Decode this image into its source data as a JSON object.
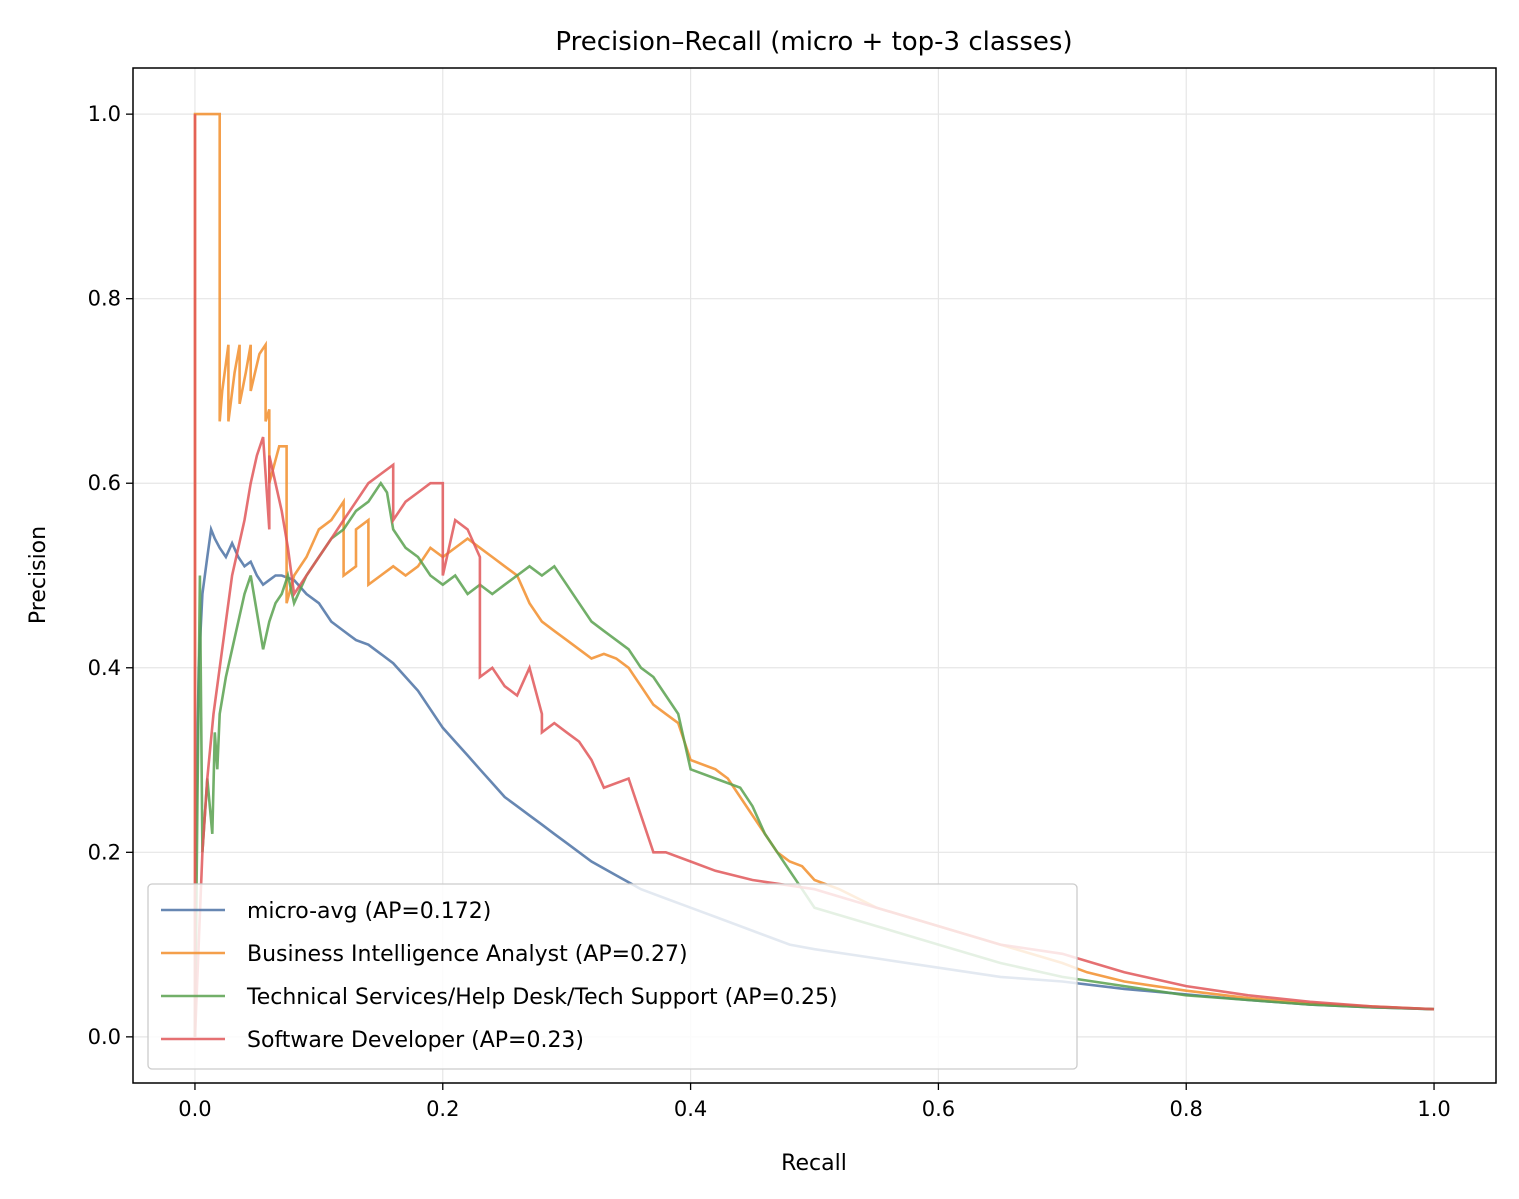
{
  "chart_data": {
    "type": "line",
    "title": "Precision–Recall (micro + top-3 classes)",
    "xlabel": "Recall",
    "ylabel": "Precision",
    "xlim": [
      -0.05,
      1.05
    ],
    "ylim": [
      -0.05,
      1.05
    ],
    "xticks": [
      0.0,
      0.2,
      0.4,
      0.6,
      0.8,
      1.0
    ],
    "yticks": [
      0.0,
      0.2,
      0.4,
      0.6,
      0.8,
      1.0
    ],
    "xtick_labels": [
      "0.0",
      "0.2",
      "0.4",
      "0.6",
      "0.8",
      "1.0"
    ],
    "ytick_labels": [
      "0.0",
      "0.2",
      "0.4",
      "0.6",
      "0.8",
      "1.0"
    ],
    "grid": true,
    "legend_position": "lower-left",
    "series": [
      {
        "name": "micro-avg (AP=0.172)",
        "color": "#4c72a4",
        "x": [
          0.0,
          0.0,
          0.003,
          0.006,
          0.01,
          0.013,
          0.016,
          0.02,
          0.025,
          0.03,
          0.035,
          0.04,
          0.045,
          0.05,
          0.055,
          0.06,
          0.065,
          0.07,
          0.08,
          0.09,
          0.1,
          0.11,
          0.12,
          0.13,
          0.14,
          0.15,
          0.16,
          0.17,
          0.18,
          0.19,
          0.2,
          0.21,
          0.22,
          0.23,
          0.24,
          0.25,
          0.26,
          0.27,
          0.28,
          0.29,
          0.3,
          0.32,
          0.34,
          0.36,
          0.38,
          0.4,
          0.42,
          0.44,
          0.46,
          0.48,
          0.5,
          0.55,
          0.6,
          0.65,
          0.7,
          0.75,
          0.8,
          0.85,
          0.9,
          0.95,
          1.0
        ],
        "y": [
          0.0,
          0.15,
          0.4,
          0.48,
          0.52,
          0.55,
          0.54,
          0.53,
          0.52,
          0.535,
          0.52,
          0.51,
          0.515,
          0.5,
          0.49,
          0.495,
          0.5,
          0.5,
          0.495,
          0.48,
          0.47,
          0.45,
          0.44,
          0.43,
          0.425,
          0.415,
          0.405,
          0.39,
          0.375,
          0.355,
          0.335,
          0.32,
          0.305,
          0.29,
          0.275,
          0.26,
          0.25,
          0.24,
          0.23,
          0.22,
          0.21,
          0.19,
          0.175,
          0.16,
          0.15,
          0.14,
          0.13,
          0.12,
          0.11,
          0.1,
          0.095,
          0.085,
          0.075,
          0.065,
          0.06,
          0.052,
          0.046,
          0.04,
          0.035,
          0.032,
          0.03
        ]
      },
      {
        "name": "Business Intelligence Analyst (AP=0.27)",
        "color": "#f28e2b",
        "x": [
          0.0,
          0.0,
          0.02,
          0.02,
          0.022,
          0.027,
          0.027,
          0.032,
          0.036,
          0.036,
          0.041,
          0.045,
          0.045,
          0.052,
          0.057,
          0.057,
          0.06,
          0.06,
          0.068,
          0.074,
          0.074,
          0.08,
          0.09,
          0.1,
          0.11,
          0.12,
          0.12,
          0.13,
          0.13,
          0.14,
          0.14,
          0.15,
          0.16,
          0.17,
          0.18,
          0.19,
          0.2,
          0.22,
          0.23,
          0.24,
          0.25,
          0.26,
          0.27,
          0.28,
          0.29,
          0.3,
          0.31,
          0.32,
          0.33,
          0.34,
          0.35,
          0.36,
          0.37,
          0.38,
          0.39,
          0.4,
          0.42,
          0.43,
          0.44,
          0.45,
          0.46,
          0.47,
          0.48,
          0.49,
          0.5,
          0.52,
          0.55,
          0.6,
          0.65,
          0.7,
          0.71,
          0.72,
          0.75,
          0.8,
          0.85,
          0.9,
          0.95,
          1.0
        ],
        "y": [
          0.0,
          1.0,
          1.0,
          0.667,
          0.7,
          0.75,
          0.667,
          0.72,
          0.75,
          0.686,
          0.72,
          0.75,
          0.7,
          0.74,
          0.75,
          0.667,
          0.68,
          0.6,
          0.64,
          0.64,
          0.47,
          0.5,
          0.52,
          0.55,
          0.56,
          0.58,
          0.5,
          0.51,
          0.55,
          0.56,
          0.49,
          0.5,
          0.51,
          0.5,
          0.51,
          0.53,
          0.52,
          0.54,
          0.53,
          0.52,
          0.51,
          0.5,
          0.47,
          0.45,
          0.44,
          0.43,
          0.42,
          0.41,
          0.415,
          0.41,
          0.4,
          0.38,
          0.36,
          0.35,
          0.34,
          0.3,
          0.29,
          0.28,
          0.26,
          0.24,
          0.22,
          0.2,
          0.19,
          0.185,
          0.17,
          0.16,
          0.14,
          0.12,
          0.1,
          0.08,
          0.075,
          0.07,
          0.06,
          0.05,
          0.042,
          0.036,
          0.033,
          0.03
        ]
      },
      {
        "name": "Technical Services/Help Desk/Tech Support (AP=0.25)",
        "color": "#59a14f",
        "x": [
          0.0,
          0.002,
          0.004,
          0.006,
          0.01,
          0.014,
          0.016,
          0.018,
          0.02,
          0.025,
          0.03,
          0.035,
          0.04,
          0.045,
          0.05,
          0.055,
          0.06,
          0.065,
          0.07,
          0.075,
          0.08,
          0.09,
          0.1,
          0.11,
          0.12,
          0.13,
          0.14,
          0.15,
          0.155,
          0.16,
          0.17,
          0.18,
          0.19,
          0.2,
          0.21,
          0.22,
          0.23,
          0.24,
          0.25,
          0.26,
          0.27,
          0.28,
          0.29,
          0.3,
          0.31,
          0.32,
          0.33,
          0.34,
          0.35,
          0.36,
          0.37,
          0.38,
          0.39,
          0.4,
          0.42,
          0.44,
          0.45,
          0.46,
          0.47,
          0.48,
          0.49,
          0.5,
          0.55,
          0.6,
          0.65,
          0.7,
          0.75,
          0.8,
          0.85,
          0.9,
          0.95,
          1.0
        ],
        "y": [
          0.0,
          0.25,
          0.5,
          0.2,
          0.28,
          0.22,
          0.33,
          0.29,
          0.35,
          0.39,
          0.42,
          0.45,
          0.48,
          0.5,
          0.46,
          0.42,
          0.45,
          0.47,
          0.48,
          0.5,
          0.47,
          0.5,
          0.52,
          0.54,
          0.55,
          0.57,
          0.58,
          0.6,
          0.59,
          0.55,
          0.53,
          0.52,
          0.5,
          0.49,
          0.5,
          0.48,
          0.49,
          0.48,
          0.49,
          0.5,
          0.51,
          0.5,
          0.51,
          0.49,
          0.47,
          0.45,
          0.44,
          0.43,
          0.42,
          0.4,
          0.39,
          0.37,
          0.35,
          0.29,
          0.28,
          0.27,
          0.25,
          0.22,
          0.2,
          0.18,
          0.16,
          0.14,
          0.12,
          0.1,
          0.08,
          0.065,
          0.055,
          0.045,
          0.04,
          0.035,
          0.032,
          0.03
        ]
      },
      {
        "name": "Software Developer (AP=0.23)",
        "color": "#e15759",
        "x": [
          0.0,
          0.0,
          0.003,
          0.006,
          0.01,
          0.015,
          0.02,
          0.025,
          0.03,
          0.035,
          0.04,
          0.045,
          0.05,
          0.055,
          0.06,
          0.06,
          0.065,
          0.07,
          0.075,
          0.08,
          0.09,
          0.1,
          0.11,
          0.12,
          0.13,
          0.14,
          0.15,
          0.16,
          0.16,
          0.17,
          0.18,
          0.19,
          0.2,
          0.2,
          0.21,
          0.22,
          0.23,
          0.23,
          0.24,
          0.25,
          0.26,
          0.27,
          0.28,
          0.28,
          0.29,
          0.3,
          0.31,
          0.32,
          0.33,
          0.35,
          0.36,
          0.37,
          0.38,
          0.4,
          0.42,
          0.45,
          0.5,
          0.55,
          0.6,
          0.65,
          0.7,
          0.75,
          0.8,
          0.85,
          0.9,
          0.95,
          1.0
        ],
        "y": [
          1.0,
          0.0,
          0.1,
          0.2,
          0.28,
          0.35,
          0.4,
          0.45,
          0.5,
          0.53,
          0.56,
          0.6,
          0.63,
          0.65,
          0.55,
          0.63,
          0.6,
          0.57,
          0.53,
          0.48,
          0.5,
          0.52,
          0.54,
          0.56,
          0.58,
          0.6,
          0.61,
          0.62,
          0.56,
          0.58,
          0.59,
          0.6,
          0.6,
          0.5,
          0.56,
          0.55,
          0.52,
          0.39,
          0.4,
          0.38,
          0.37,
          0.4,
          0.35,
          0.33,
          0.34,
          0.33,
          0.32,
          0.3,
          0.27,
          0.28,
          0.24,
          0.2,
          0.2,
          0.19,
          0.18,
          0.17,
          0.16,
          0.14,
          0.12,
          0.1,
          0.09,
          0.07,
          0.055,
          0.045,
          0.038,
          0.033,
          0.03
        ]
      }
    ]
  }
}
